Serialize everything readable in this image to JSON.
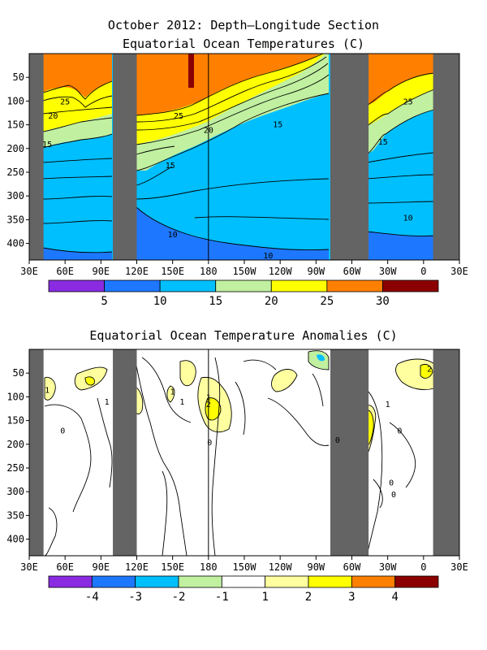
{
  "titles": {
    "top_line1": "October 2012: Depth–Longitude Section",
    "top_line2": "Equatorial Ocean Temperatures (C)",
    "bottom": "Equatorial Ocean Temperature Anomalies (C)"
  },
  "colors": {
    "land": "#646464",
    "contour": "#000000"
  },
  "chart_data": [
    {
      "type": "heatmap",
      "title": "Equatorial Ocean Temperatures (C)",
      "x_tick_labels": [
        "30E",
        "60E",
        "90E",
        "120E",
        "150E",
        "180",
        "150W",
        "120W",
        "90W",
        "60W",
        "30W",
        "0",
        "30E"
      ],
      "x_tick_lon": [
        30,
        60,
        90,
        120,
        150,
        180,
        210,
        240,
        270,
        300,
        330,
        360,
        390
      ],
      "xlim": [
        30,
        390
      ],
      "y_ticks": [
        50,
        100,
        150,
        200,
        250,
        300,
        350,
        400
      ],
      "ylim": [
        0,
        435
      ],
      "y_inverted": true,
      "land_bands_lon": [
        [
          30,
          42
        ],
        [
          100,
          120
        ],
        [
          282,
          314
        ],
        [
          368,
          390
        ]
      ],
      "dateline_lon": 180,
      "contour_labels": [
        {
          "text": "25",
          "lon": 60,
          "depth": 100
        },
        {
          "text": "20",
          "lon": 50,
          "depth": 130
        },
        {
          "text": "15",
          "lon": 45,
          "depth": 190
        },
        {
          "text": "25",
          "lon": 155,
          "depth": 130
        },
        {
          "text": "20",
          "lon": 180,
          "depth": 160
        },
        {
          "text": "15",
          "lon": 238,
          "depth": 148
        },
        {
          "text": "15",
          "lon": 148,
          "depth": 235
        },
        {
          "text": "10",
          "lon": 150,
          "depth": 380
        },
        {
          "text": "10",
          "lon": 230,
          "depth": 425
        },
        {
          "text": "25",
          "lon": 347,
          "depth": 100
        },
        {
          "text": "15",
          "lon": 326,
          "depth": 185
        },
        {
          "text": "10",
          "lon": 347,
          "depth": 345
        }
      ],
      "colorbar": {
        "labels": [
          "5",
          "10",
          "15",
          "20",
          "25",
          "30"
        ],
        "colors": [
          "#8a2be2",
          "#1e78ff",
          "#00bfff",
          "#c0f0a0",
          "#ffff00",
          "#ff8000",
          "#8b0000"
        ]
      }
    },
    {
      "type": "heatmap",
      "title": "Equatorial Ocean Temperature Anomalies (C)",
      "x_tick_labels": [
        "30E",
        "60E",
        "90E",
        "120E",
        "150E",
        "180",
        "150W",
        "120W",
        "90W",
        "60W",
        "30W",
        "0",
        "30E"
      ],
      "x_tick_lon": [
        30,
        60,
        90,
        120,
        150,
        180,
        210,
        240,
        270,
        300,
        330,
        360,
        390
      ],
      "xlim": [
        30,
        390
      ],
      "y_ticks": [
        50,
        100,
        150,
        200,
        250,
        300,
        350,
        400
      ],
      "ylim": [
        0,
        435
      ],
      "y_inverted": true,
      "land_bands_lon": [
        [
          30,
          42
        ],
        [
          100,
          120
        ],
        [
          282,
          314
        ],
        [
          368,
          390
        ]
      ],
      "dateline_lon": 180,
      "contour_labels": [
        {
          "text": "1",
          "lon": 45,
          "depth": 85
        },
        {
          "text": "1",
          "lon": 95,
          "depth": 110
        },
        {
          "text": "0",
          "lon": 58,
          "depth": 170
        },
        {
          "text": "1",
          "lon": 158,
          "depth": 110
        },
        {
          "text": "1",
          "lon": 180,
          "depth": 100
        },
        {
          "text": "2",
          "lon": 180,
          "depth": 115
        },
        {
          "text": "1",
          "lon": 150,
          "depth": 88
        },
        {
          "text": "0",
          "lon": 181,
          "depth": 195
        },
        {
          "text": "0",
          "lon": 288,
          "depth": 190
        },
        {
          "text": "1",
          "lon": 330,
          "depth": 115
        },
        {
          "text": "0",
          "lon": 340,
          "depth": 170
        },
        {
          "text": "0",
          "lon": 333,
          "depth": 280
        },
        {
          "text": "2",
          "lon": 365,
          "depth": 40
        },
        {
          "text": "0",
          "lon": 335,
          "depth": 305
        }
      ],
      "colorbar": {
        "labels": [
          "-4",
          "-3",
          "-2",
          "-1",
          "1",
          "2",
          "3",
          "4"
        ],
        "colors": [
          "#8a2be2",
          "#1e78ff",
          "#00bfff",
          "#c0f0a0",
          "#ffffff",
          "#ffffa0",
          "#ffff00",
          "#ff8000",
          "#8b0000"
        ]
      }
    }
  ]
}
